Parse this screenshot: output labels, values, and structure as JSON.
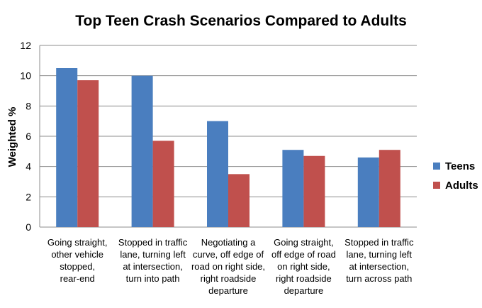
{
  "chart_data": {
    "type": "bar",
    "title": "Top Teen Crash Scenarios Compared to Adults",
    "xlabel": "",
    "ylabel": "Weighted %",
    "ylim": [
      0,
      12
    ],
    "yticks": [
      "0",
      "2",
      "4",
      "6",
      "8",
      "10",
      "12"
    ],
    "grid": true,
    "legend_position": "right",
    "categories": [
      [
        "Going straight,",
        "other vehicle",
        "stopped,",
        "rear-end"
      ],
      [
        "Stopped in traffic",
        "lane, turning left",
        "at intersection,",
        "turn into path"
      ],
      [
        "Negotiating a",
        "curve, off edge of",
        "road on right side,",
        "right roadside",
        "departure"
      ],
      [
        "Going straight,",
        "off edge of road",
        "on right side,",
        "right roadside",
        "departure"
      ],
      [
        "Stopped in traffic",
        "lane, turning left",
        "at intersection,",
        "turn across path"
      ]
    ],
    "series": [
      {
        "name": "Teens",
        "color": "#4a7ebf",
        "values": [
          10.5,
          10.0,
          7.0,
          5.1,
          4.6
        ]
      },
      {
        "name": "Adults",
        "color": "#c0504d",
        "values": [
          9.7,
          5.7,
          3.5,
          4.7,
          5.1
        ]
      }
    ]
  }
}
